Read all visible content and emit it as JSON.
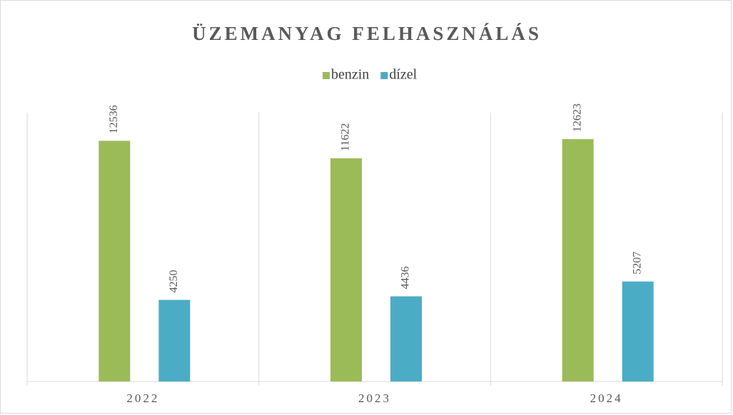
{
  "chart_data": {
    "type": "bar",
    "title": "ÜZEMANYAG FELHASZNÁLÁS",
    "categories": [
      "2022",
      "2023",
      "2024"
    ],
    "series": [
      {
        "name": "benzin",
        "color": "#9bbb59",
        "values": [
          12536,
          11622,
          12623
        ]
      },
      {
        "name": "dízel",
        "color": "#4bacc6",
        "values": [
          4250,
          4436,
          5207
        ]
      }
    ],
    "ylim": [
      0,
      14000
    ],
    "legend": "top"
  }
}
